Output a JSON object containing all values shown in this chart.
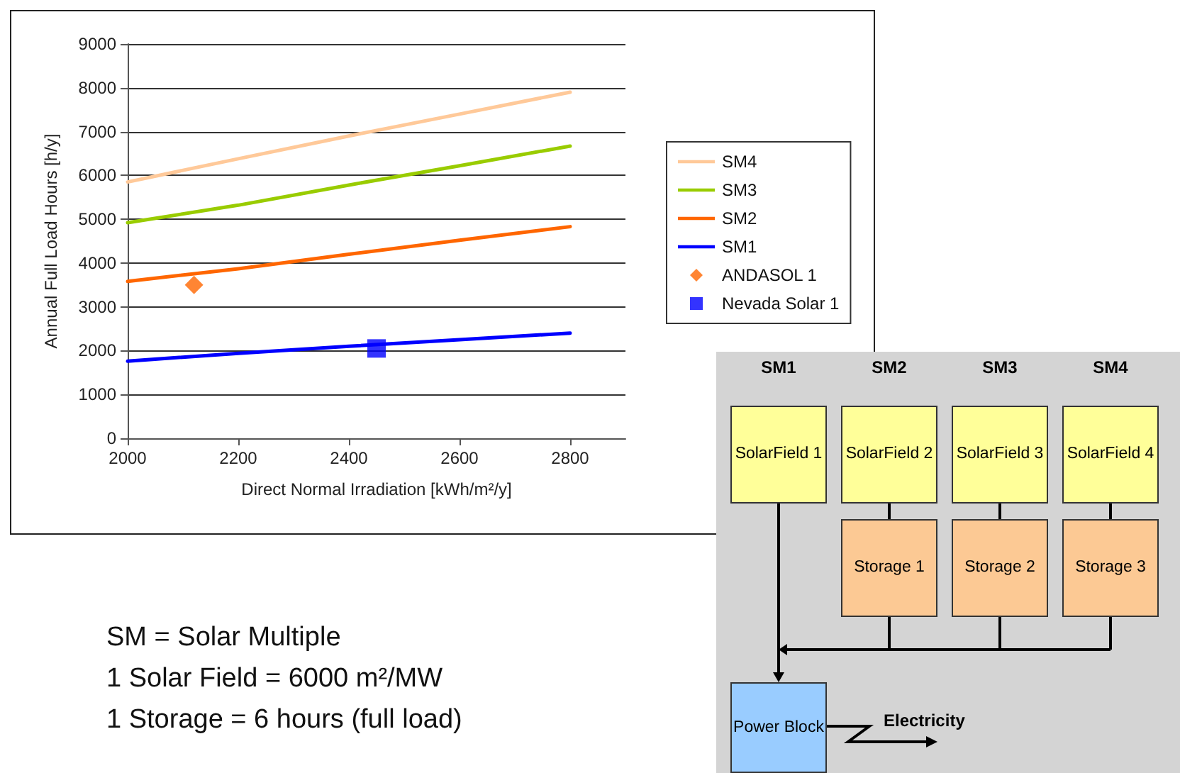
{
  "chart_data": [
    {
      "type": "line",
      "xlabel": "Direct Normal Irradiation [kWh/m²/y]",
      "ylabel": "Annual Full Load Hours [h/y]",
      "x": [
        2000,
        2200,
        2400,
        2600,
        2800
      ],
      "series": [
        {
          "name": "SM4",
          "color": "#ffc999",
          "values": [
            5850,
            6380,
            6900,
            7400,
            7900
          ]
        },
        {
          "name": "SM3",
          "color": "#99cc00",
          "values": [
            4920,
            5320,
            5780,
            6220,
            6670
          ]
        },
        {
          "name": "SM2",
          "color": "#ff6600",
          "values": [
            3580,
            3870,
            4200,
            4520,
            4830
          ]
        },
        {
          "name": "SM1",
          "color": "#0000ff",
          "values": [
            1760,
            1940,
            2100,
            2250,
            2400
          ]
        },
        {
          "name": "ANDASOL 1",
          "type": "scatter",
          "marker": "diamond",
          "color": "#ff6600",
          "x": [
            2120
          ],
          "values": [
            3500
          ]
        },
        {
          "name": "Nevada Solar 1",
          "type": "scatter",
          "marker": "square",
          "color": "#0000ff",
          "x": [
            2450
          ],
          "values": [
            2050
          ]
        }
      ],
      "xlim": [
        2000,
        2900
      ],
      "xticks": [
        2000,
        2200,
        2400,
        2600,
        2800
      ],
      "ylim": [
        0,
        9000
      ],
      "yticks": [
        0,
        1000,
        2000,
        3000,
        4000,
        5000,
        6000,
        7000,
        8000,
        9000
      ],
      "grid": "y",
      "legend": "right",
      "marker": "none",
      "line_style": "solid",
      "annotations": [
        "SM = Solar Multiple",
        "1 Solar Field = 6000 m²/MW",
        "1 Storage = 6 hours (full load)"
      ]
    },
    {
      "type": "other",
      "annotations": [
        "SM1",
        "SM2",
        "SM3",
        "SM4",
        "SolarField 1",
        "SolarField 2",
        "SolarField 3",
        "SolarField 4",
        "Storage 1",
        "Storage 2",
        "Storage 3",
        "Power Block",
        "Electricity"
      ]
    }
  ]
}
